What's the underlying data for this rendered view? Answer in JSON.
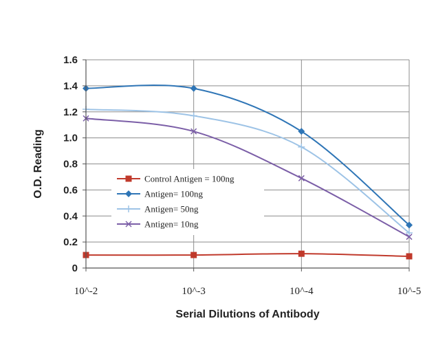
{
  "chart_data": {
    "type": "line",
    "title": "",
    "xlabel": "Serial Dilutions of Antibody",
    "ylabel": "O.D. Reading",
    "categories": [
      "10^-2",
      "10^-3",
      "10^-4",
      "10^-5"
    ],
    "yticks": [
      "0",
      "0.2",
      "0.4",
      "0.6",
      "0.8",
      "1.0",
      "1.2",
      "1.4",
      "1.6"
    ],
    "ylim": [
      0,
      1.6
    ],
    "grid": true,
    "legend_position": "center-left",
    "series": [
      {
        "name": "Control Antigen = 100ng",
        "values": [
          0.1,
          0.1,
          0.11,
          0.09
        ],
        "color": "#c0392b",
        "marker": "square"
      },
      {
        "name": "Antigen= 100ng",
        "values": [
          1.38,
          1.38,
          1.05,
          0.33
        ],
        "color": "#2e75b6",
        "marker": "diamond"
      },
      {
        "name": "Antigen= 50ng",
        "values": [
          1.22,
          1.17,
          0.93,
          0.27
        ],
        "color": "#9dc3e6",
        "marker": "plus"
      },
      {
        "name": "Antigen= 10ng",
        "values": [
          1.15,
          1.05,
          0.69,
          0.24
        ],
        "color": "#7b5ea7",
        "marker": "x"
      }
    ]
  }
}
